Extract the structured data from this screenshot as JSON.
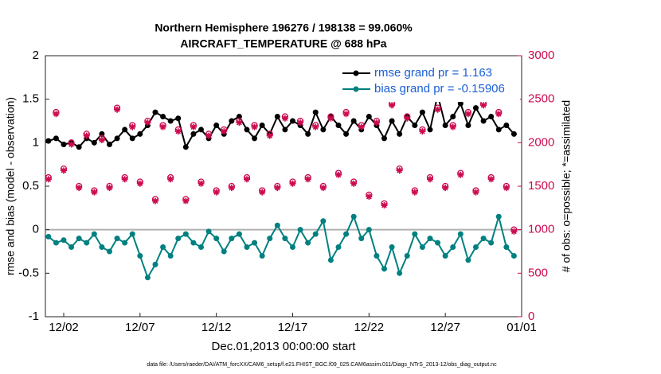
{
  "chart_data": {
    "type": "line",
    "title": "Northern Hemisphere 196276 / 198138 = 99.060%",
    "subtitle": "AIRCRAFT_TEMPERATURE @ 688 hPa",
    "xlabel": "Dec.01,2013 00:00:00 start",
    "ylabel": "rmse and bias (model - observation)",
    "y2label": "# of obs: o=possible; *=assimilated",
    "footnote": "data file: /Users/raeder/DAI/ATM_forcXX/CAM6_setup/f.e21.FHIST_BGC.f09_025.CAM6assim.011/Diags_NTrS_2013-12/obs_diag_output.nc",
    "x": [
      1,
      1.5,
      2,
      2.5,
      3,
      3.5,
      4,
      4.5,
      5,
      5.5,
      6,
      6.5,
      7,
      7.5,
      8,
      8.5,
      9,
      9.5,
      10,
      10.5,
      11,
      11.5,
      12,
      12.5,
      13,
      13.5,
      14,
      14.5,
      15,
      15.5,
      16,
      16.5,
      17,
      17.5,
      18,
      18.5,
      19,
      19.5,
      20,
      20.5,
      21,
      21.5,
      22,
      22.5,
      23,
      23.5,
      24,
      24.5,
      25,
      25.5,
      26,
      26.5,
      27,
      27.5,
      28,
      28.5,
      29,
      29.5,
      30,
      30.5,
      31,
      31.5
    ],
    "xlim": [
      0.8,
      32
    ],
    "xticks": [
      {
        "value": 2,
        "label": "12/02"
      },
      {
        "value": 7,
        "label": "12/07"
      },
      {
        "value": 12,
        "label": "12/12"
      },
      {
        "value": 17,
        "label": "12/17"
      },
      {
        "value": 22,
        "label": "12/22"
      },
      {
        "value": 27,
        "label": "12/27"
      },
      {
        "value": 32,
        "label": "01/01"
      }
    ],
    "ylim": [
      -1,
      2
    ],
    "yticks": [
      -1,
      -0.5,
      0,
      0.5,
      1,
      1.5,
      2
    ],
    "y2lim": [
      0,
      3000
    ],
    "y2ticks": [
      0,
      500,
      1000,
      1500,
      2000,
      2500,
      3000
    ],
    "y2color": "#cc0a50",
    "series": [
      {
        "name": "rmse grand pr = 1.163",
        "color": "#000000",
        "marker": "filled-circle",
        "line": true,
        "values": [
          1.02,
          1.05,
          0.98,
          1.0,
          0.95,
          1.05,
          1.0,
          1.1,
          0.98,
          1.05,
          1.15,
          1.05,
          1.1,
          1.2,
          1.35,
          1.3,
          1.25,
          1.28,
          0.95,
          1.1,
          1.15,
          1.05,
          1.2,
          1.1,
          1.25,
          1.3,
          1.15,
          1.05,
          1.2,
          1.1,
          1.3,
          1.15,
          1.25,
          1.2,
          1.1,
          1.35,
          1.15,
          1.3,
          1.2,
          1.1,
          1.25,
          1.15,
          1.3,
          1.2,
          1.05,
          1.25,
          1.1,
          1.3,
          1.2,
          1.35,
          1.15,
          1.55,
          1.2,
          1.3,
          1.45,
          1.2,
          1.4,
          1.25,
          1.3,
          1.15,
          1.2,
          1.1
        ]
      },
      {
        "name": "bias grand pr = -0.15906",
        "color": "#008080",
        "marker": "filled-circle",
        "line": true,
        "values": [
          -0.08,
          -0.15,
          -0.12,
          -0.2,
          -0.1,
          -0.15,
          -0.05,
          -0.2,
          -0.25,
          -0.1,
          -0.15,
          -0.05,
          -0.3,
          -0.55,
          -0.4,
          -0.2,
          -0.3,
          -0.1,
          -0.05,
          -0.15,
          -0.2,
          -0.02,
          -0.1,
          -0.25,
          -0.1,
          -0.05,
          -0.2,
          -0.15,
          -0.3,
          -0.1,
          0.05,
          -0.1,
          -0.2,
          0,
          -0.15,
          -0.05,
          0.1,
          -0.35,
          -0.2,
          -0.05,
          0.15,
          -0.1,
          0,
          -0.3,
          -0.45,
          -0.2,
          -0.5,
          -0.3,
          -0.05,
          -0.2,
          -0.1,
          -0.15,
          -0.3,
          -0.2,
          -0.05,
          -0.35,
          -0.2,
          -0.1,
          -0.15,
          0.15,
          -0.2,
          -0.3
        ]
      },
      {
        "color": "#cc0a50",
        "marker": "circle",
        "line": false,
        "axis": "y2",
        "values": [
          1600,
          2350,
          1700,
          2000,
          1500,
          2100,
          1450,
          2050,
          1500,
          2400,
          1600,
          2200,
          1550,
          2250,
          1350,
          2200,
          1600,
          2150,
          1350,
          2200,
          1550,
          2100,
          1450,
          2150,
          1500,
          2250,
          1600,
          2200,
          1450,
          2100,
          1500,
          2300,
          1550,
          2250,
          1600,
          2200,
          1500,
          2300,
          1650,
          2350,
          1550,
          2200,
          1400,
          2250,
          1300,
          2450,
          1700,
          2300,
          1450,
          2150,
          1600,
          2400,
          1500,
          2200,
          1650,
          2350,
          1450,
          2450,
          1600,
          2350,
          1500,
          1000
        ]
      },
      {
        "color": "#cc0a50",
        "marker": "star",
        "line": false,
        "axis": "y2",
        "values": [
          1580,
          2330,
          1680,
          1980,
          1480,
          2080,
          1430,
          2030,
          1480,
          2380,
          1580,
          2180,
          1530,
          2230,
          1330,
          2180,
          1580,
          2130,
          1330,
          2180,
          1530,
          2080,
          1430,
          2130,
          1480,
          2230,
          1580,
          2180,
          1430,
          2080,
          1480,
          2280,
          1530,
          2230,
          1580,
          2180,
          1480,
          2280,
          1630,
          2330,
          1530,
          2180,
          1380,
          2230,
          1280,
          2430,
          1680,
          2280,
          1430,
          2130,
          1580,
          2380,
          1480,
          2180,
          1630,
          2330,
          1430,
          2430,
          1580,
          2330,
          1480,
          980
        ]
      }
    ]
  }
}
